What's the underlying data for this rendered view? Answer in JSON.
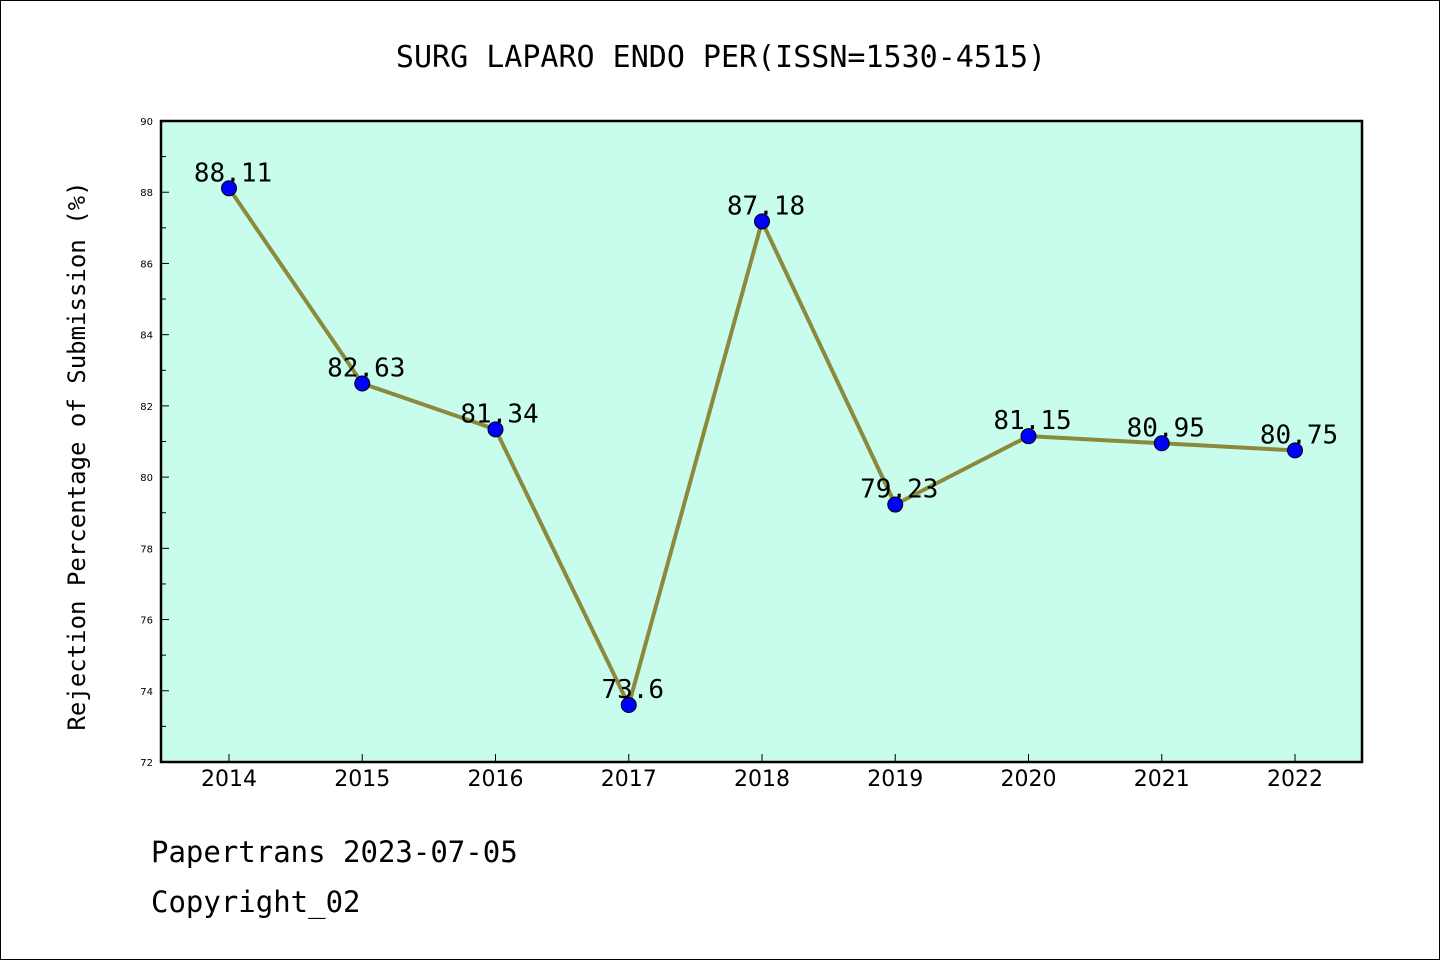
{
  "chart_data": {
    "type": "line",
    "title": "SURG LAPARO ENDO PER(ISSN=1530-4515)",
    "xlabel": "",
    "ylabel": "Rejection Percentage of Submission (%)",
    "x": [
      "2014",
      "2015",
      "2016",
      "2017",
      "2018",
      "2019",
      "2020",
      "2021",
      "2022"
    ],
    "series": [
      {
        "values": [
          88.11,
          82.63,
          81.34,
          73.6,
          87.18,
          79.23,
          81.15,
          80.95,
          80.75
        ],
        "labels": [
          "88.11",
          "82.63",
          "81.34",
          "73.6",
          "87.18",
          "79.23",
          "81.15",
          "80.95",
          "80.75"
        ],
        "line_color": "#8b8a3c",
        "marker_color": "#0000ff"
      }
    ],
    "ylim": [
      72,
      90
    ],
    "yticks": [
      "72",
      "74",
      "76",
      "78",
      "80",
      "82",
      "84",
      "86",
      "88",
      "90"
    ],
    "grid": false,
    "plot_background": "#c8fdee"
  },
  "footer": {
    "line1": "Papertrans 2023-07-05",
    "line2": "Copyright_02"
  }
}
